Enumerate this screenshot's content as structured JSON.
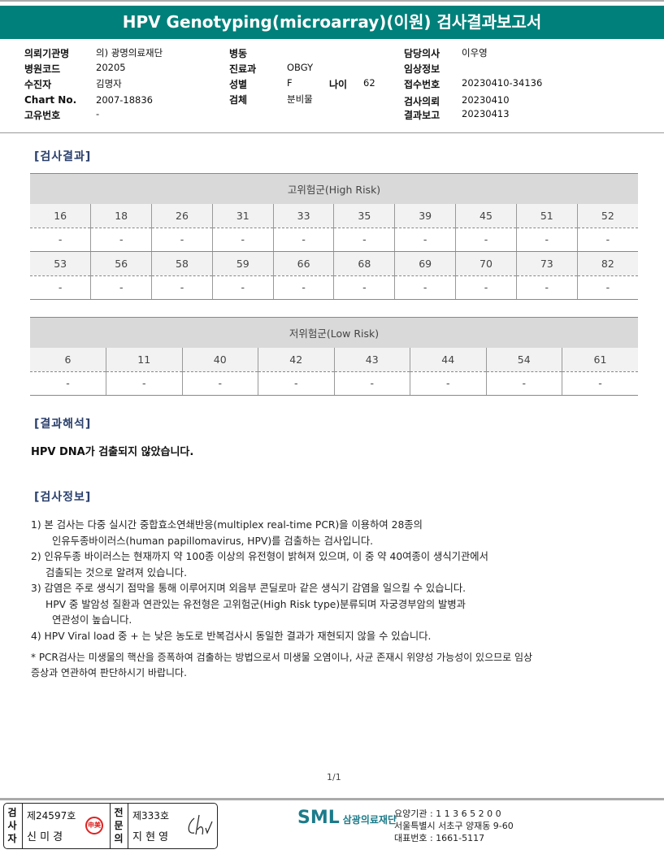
{
  "title": "HPV Genotyping(microarray)(이원) 검사결과보고서",
  "info": {
    "c1": [
      {
        "label": "의뢰기관명",
        "value": "의) 광명의료재단"
      },
      {
        "label": "병원코드",
        "value": "20205"
      },
      {
        "label": "수진자",
        "value": "김명자"
      },
      {
        "label": "Chart No.",
        "value": "2007-18836"
      },
      {
        "label": "고유번호",
        "value": "-"
      }
    ],
    "c2": [
      {
        "label": "병동",
        "value": ""
      },
      {
        "label": "진료과",
        "value": "OBGY"
      },
      {
        "label": "성별",
        "value": "F"
      },
      {
        "label": "검체",
        "value": "분비물"
      }
    ],
    "age": {
      "label": "나이",
      "value": "62"
    },
    "c3": [
      {
        "label": "담당의사",
        "value": "이우영"
      },
      {
        "label": "임상정보",
        "value": ""
      },
      {
        "label": "접수번호",
        "value": "20230410-34136"
      },
      {
        "label": "검사의뢰",
        "value": "20230410"
      },
      {
        "label": "결과보고",
        "value": "20230413"
      }
    ]
  },
  "results_heading": "[검사결과]",
  "high_risk": {
    "title": "고위험군(High Risk)",
    "rows": [
      {
        "types": [
          "16",
          "18",
          "26",
          "31",
          "33",
          "35",
          "39",
          "45",
          "51",
          "52"
        ],
        "values": [
          "-",
          "-",
          "-",
          "-",
          "-",
          "-",
          "-",
          "-",
          "-",
          "-"
        ]
      },
      {
        "types": [
          "53",
          "56",
          "58",
          "59",
          "66",
          "68",
          "69",
          "70",
          "73",
          "82"
        ],
        "values": [
          "-",
          "-",
          "-",
          "-",
          "-",
          "-",
          "-",
          "-",
          "-",
          "-"
        ]
      }
    ]
  },
  "low_risk": {
    "title": "저위험군(Low Risk)",
    "types": [
      "6",
      "11",
      "40",
      "42",
      "43",
      "44",
      "54",
      "61"
    ],
    "values": [
      "-",
      "-",
      "-",
      "-",
      "-",
      "-",
      "-",
      "-"
    ]
  },
  "interp_heading": "[결과해석]",
  "interpretation": "HPV DNA가 검출되지 않았습니다.",
  "info_heading": "[검사정보]",
  "notes": [
    "1)  본 검사는 다중 실시간 중합효소연쇄반응(multiplex real-time PCR)을 이용하여 28종의",
    "인유두종바이러스(human papillomavirus, HPV)를 검출하는 검사입니다.",
    "2) 인유두종 바이러스는 현재까지 약 100종 이상의 유전형이 밝혀져 있으며, 이 중 약 40여종이 생식기관에서",
    "검출되는 것으로 알려져 있습니다.",
    "3) 감염은 주로 생식기 점막을 통해 이루어지며 외음부 콘딜로마 같은 생식기 감염을 일으킬 수 있습니다.",
    "HPV 중 발암성 질환과 연관있는 유전형은 고위험군(High Risk type)분류되며 자궁경부암의 발병과",
    "연관성이 높습니다.",
    "4) HPV Viral load 중 + 는 낮은 농도로 반복검사시 동일한 결과가 재현되지 않을 수 있습니다."
  ],
  "footnote": [
    "* PCR검사는 미생물의 핵산을 증폭하여 검출하는 방법으로서 미생물 오염이나, 사균 존재시 위양성 가능성이 있으므로 임상",
    "증상과 연관하여 판단하시기 바랍니다."
  ],
  "page": "1/1",
  "signature": {
    "tester_label": "검사자",
    "tester_no": "제24597호",
    "tester_name": "신 미 경",
    "seal_text": "申美",
    "doctor_label": "전문의",
    "doctor_no": "제333호",
    "doctor_name": "지 현 영"
  },
  "org": {
    "logo": "SML",
    "name": "삼광의료재단",
    "code": "요양기관 : 1 1 3 6 5 2 0 0",
    "address": "서울특별시 서초구 양재동 9-60",
    "phone": "대표번호 : 1661-5117"
  },
  "colors": {
    "title_bar": "#00807a",
    "heading": "#2a3f6b",
    "header_gray": "#d9d9d9"
  }
}
